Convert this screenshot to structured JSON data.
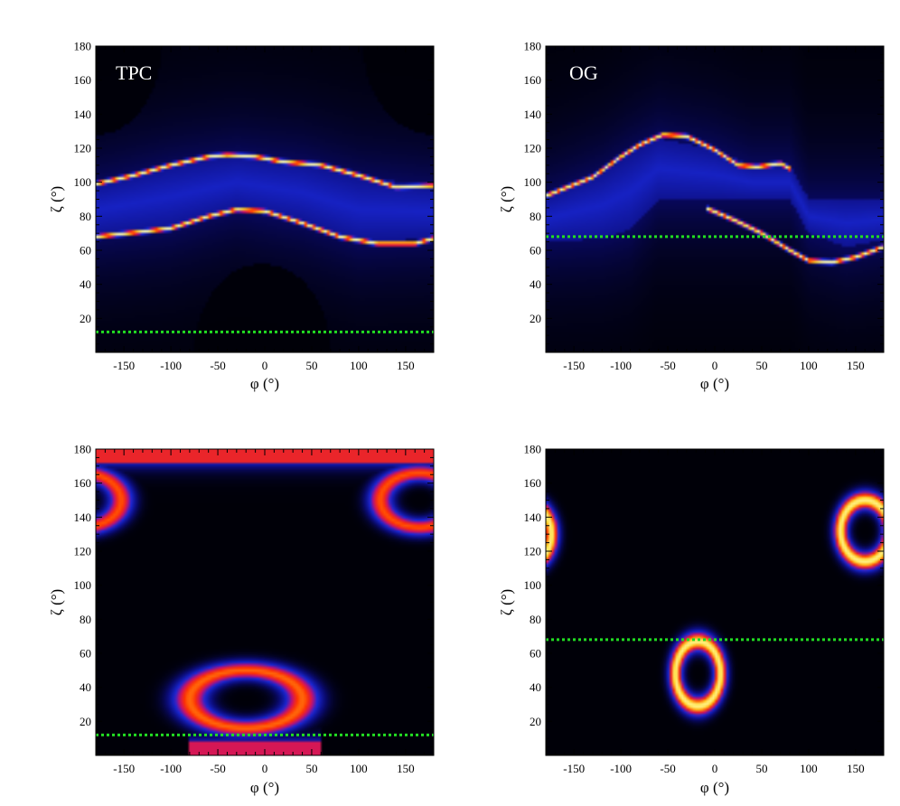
{
  "figure": {
    "background": "#ffffff",
    "colormap": [
      "#000008",
      "#0a0a70",
      "#1a28d8",
      "#c80f6e",
      "#ff3300",
      "#ffd21e",
      "#ffffb4"
    ]
  },
  "chart_data": [
    {
      "type": "heatmap",
      "panel_label": "TPC",
      "xlabel": "φ (°)",
      "ylabel": "ζ (°)",
      "xlim": [
        -180,
        180
      ],
      "ylim": [
        0,
        180
      ],
      "x_ticks": [
        -150,
        -100,
        -50,
        0,
        50,
        100,
        150
      ],
      "y_ticks": [
        20,
        40,
        60,
        80,
        100,
        120,
        140,
        160,
        180
      ],
      "reference_line": {
        "zeta": 12,
        "color": "#22dd22",
        "style": "dotted"
      },
      "features": [
        {
          "kind": "ridge",
          "phi": [
            -180,
            -140,
            -100,
            -60,
            -40,
            -10,
            20,
            60,
            100,
            140,
            180
          ],
          "zeta": [
            99,
            104,
            110,
            115,
            116,
            115,
            112,
            110,
            104,
            97,
            98
          ]
        },
        {
          "kind": "ridge",
          "phi": [
            -180,
            -130,
            -100,
            -60,
            -30,
            0,
            40,
            80,
            120,
            160,
            180
          ],
          "zeta": [
            68,
            71,
            73,
            80,
            84,
            83,
            76,
            68,
            64,
            64,
            67
          ]
        },
        {
          "kind": "band",
          "phi": [
            -180,
            -100,
            -30,
            40,
            100,
            180
          ],
          "zeta_low": [
            68,
            73,
            84,
            76,
            65,
            67
          ],
          "zeta_high": [
            99,
            110,
            116,
            112,
            103,
            98
          ]
        },
        {
          "kind": "void",
          "phi_range": [
            -75,
            70
          ],
          "zeta_range": [
            0,
            52
          ]
        },
        {
          "kind": "void",
          "phi_range": [
            -180,
            -110
          ],
          "zeta_range": [
            128,
            180
          ]
        },
        {
          "kind": "void",
          "phi_range": [
            105,
            180
          ],
          "zeta_range": [
            128,
            180
          ]
        }
      ]
    },
    {
      "type": "heatmap",
      "panel_label": "OG",
      "xlabel": "φ (°)",
      "ylabel": "ζ (°)",
      "xlim": [
        -180,
        180
      ],
      "ylim": [
        0,
        180
      ],
      "x_ticks": [
        -150,
        -100,
        -50,
        0,
        50,
        100,
        150
      ],
      "y_ticks": [
        20,
        40,
        60,
        80,
        100,
        120,
        140,
        160,
        180
      ],
      "reference_line": {
        "zeta": 68,
        "color": "#22dd22",
        "style": "dotted"
      },
      "features": [
        {
          "kind": "ridge",
          "phi": [
            -180,
            -130,
            -100,
            -80,
            -55,
            -30,
            0,
            25,
            45,
            70,
            80
          ],
          "zeta": [
            92,
            103,
            115,
            122,
            128,
            127,
            119,
            110,
            109,
            111,
            108
          ]
        },
        {
          "kind": "ridge",
          "phi": [
            -10,
            20,
            50,
            80,
            100,
            125,
            150,
            180
          ],
          "zeta": [
            85,
            78,
            70,
            60,
            54,
            53,
            56,
            62
          ]
        },
        {
          "kind": "band",
          "phi": [
            -180,
            -120,
            -90,
            -60,
            0,
            40,
            80,
            100,
            140,
            180
          ],
          "zeta_low": [
            65,
            67,
            72,
            90,
            90,
            90,
            90,
            70,
            62,
            66
          ],
          "zeta_high": [
            92,
            106,
            117,
            126,
            119,
            110,
            110,
            90,
            90,
            90
          ]
        }
      ]
    },
    {
      "type": "heatmap",
      "xlabel": "φ (°)",
      "ylabel": "ζ (°)",
      "xlim": [
        -180,
        180
      ],
      "ylim": [
        0,
        180
      ],
      "x_ticks": [
        -150,
        -100,
        -50,
        0,
        50,
        100,
        150
      ],
      "y_ticks": [
        20,
        40,
        60,
        80,
        100,
        120,
        140,
        160,
        180
      ],
      "reference_line": {
        "zeta": 12,
        "color": "#22dd22",
        "style": "dotted"
      },
      "features": [
        {
          "kind": "ring",
          "phi_center": -20,
          "zeta_center": 33,
          "phi_radius": 60,
          "zeta_radius": 17,
          "ring_width": 0.35,
          "peak": 0.8
        },
        {
          "kind": "ring",
          "phi_center": 165,
          "zeta_center": 150,
          "phi_radius": 42,
          "zeta_radius": 16,
          "ring_width": 0.35,
          "peak": 0.78
        },
        {
          "kind": "ring",
          "phi_center": -195,
          "zeta_center": 150,
          "phi_radius": 42,
          "zeta_radius": 16,
          "ring_width": 0.35,
          "peak": 0.78
        },
        {
          "kind": "edge_glow",
          "zeta_range": [
            172,
            180
          ],
          "peak": 0.7
        },
        {
          "kind": "edge_glow",
          "zeta_range": [
            0,
            8
          ],
          "phi_range": [
            -80,
            60
          ],
          "peak": 0.65
        }
      ]
    },
    {
      "type": "heatmap",
      "xlabel": "φ (°)",
      "ylabel": "ζ (°)",
      "xlim": [
        -180,
        180
      ],
      "ylim": [
        0,
        180
      ],
      "x_ticks": [
        -150,
        -100,
        -50,
        0,
        50,
        100,
        150
      ],
      "y_ticks": [
        20,
        40,
        60,
        80,
        100,
        120,
        140,
        160,
        180
      ],
      "reference_line": {
        "zeta": 68,
        "color": "#22dd22",
        "style": "dotted"
      },
      "features": [
        {
          "kind": "ring",
          "phi_center": -18,
          "zeta_center": 48,
          "phi_radius": 24,
          "zeta_radius": 19,
          "ring_width": 0.34,
          "peak": 0.97
        },
        {
          "kind": "ring",
          "phi_center": 160,
          "zeta_center": 132,
          "phi_radius": 26,
          "zeta_radius": 18,
          "ring_width": 0.34,
          "peak": 0.97
        },
        {
          "kind": "ring",
          "phi_center": -200,
          "zeta_center": 130,
          "phi_radius": 26,
          "zeta_radius": 18,
          "ring_width": 0.34,
          "peak": 0.97
        }
      ]
    }
  ]
}
